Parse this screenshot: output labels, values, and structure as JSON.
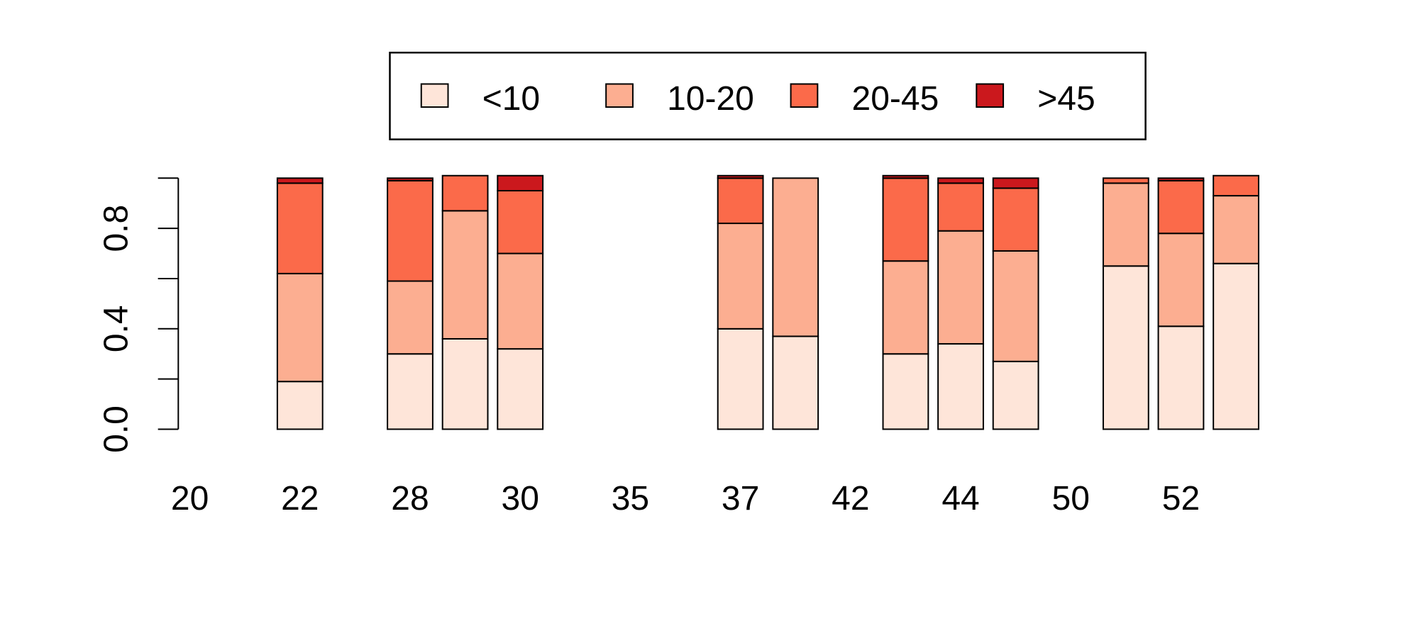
{
  "chart_data": {
    "type": "bar",
    "stacked": true,
    "title": "",
    "xlabel": "",
    "ylabel": "",
    "ylim": [
      0,
      1
    ],
    "yticks": [
      0.0,
      0.2,
      0.4,
      0.6,
      0.8,
      1.0
    ],
    "ytick_labels": [
      "0.0",
      "",
      "0.4",
      "",
      "0.8",
      ""
    ],
    "x_tick_labels": [
      "20",
      "22",
      "28",
      "30",
      "35",
      "37",
      "42",
      "44",
      "50",
      "52"
    ],
    "legend": {
      "placement": "top-center",
      "entries": [
        "<10",
        "10-20",
        "20-45",
        ">45"
      ]
    },
    "colors": [
      "#FEE5D9",
      "#FCAE91",
      "#FB6A4A",
      "#CB181D"
    ],
    "bars": [
      {
        "index": 0,
        "values": [
          0,
          0,
          0,
          0
        ]
      },
      {
        "index": 1,
        "values": [
          0,
          0,
          0,
          0
        ]
      },
      {
        "index": 2,
        "values": [
          0.19,
          0.43,
          0.36,
          0.02
        ]
      },
      {
        "index": 3,
        "values": [
          0,
          0,
          0,
          0
        ]
      },
      {
        "index": 4,
        "values": [
          0.3,
          0.29,
          0.4,
          0.01
        ]
      },
      {
        "index": 5,
        "values": [
          0.36,
          0.51,
          0.14,
          0
        ]
      },
      {
        "index": 6,
        "values": [
          0.32,
          0.38,
          0.25,
          0.06
        ]
      },
      {
        "index": 7,
        "values": [
          0,
          0,
          0,
          0
        ]
      },
      {
        "index": 8,
        "values": [
          0,
          0,
          0,
          0
        ]
      },
      {
        "index": 9,
        "values": [
          0,
          0,
          0,
          0
        ]
      },
      {
        "index": 10,
        "values": [
          0.4,
          0.42,
          0.18,
          0.01
        ]
      },
      {
        "index": 11,
        "values": [
          0.37,
          0.63,
          0,
          0
        ]
      },
      {
        "index": 12,
        "values": [
          0,
          0,
          0,
          0
        ]
      },
      {
        "index": 13,
        "values": [
          0.3,
          0.37,
          0.33,
          0.01
        ]
      },
      {
        "index": 14,
        "values": [
          0.34,
          0.45,
          0.19,
          0.02
        ]
      },
      {
        "index": 15,
        "values": [
          0.27,
          0.44,
          0.25,
          0.04
        ]
      },
      {
        "index": 16,
        "values": [
          0,
          0,
          0,
          0
        ]
      },
      {
        "index": 17,
        "values": [
          0.65,
          0.33,
          0.02,
          0
        ]
      },
      {
        "index": 18,
        "values": [
          0.41,
          0.37,
          0.21,
          0.01
        ]
      },
      {
        "index": 19,
        "values": [
          0.66,
          0.27,
          0.08,
          0
        ]
      }
    ]
  }
}
